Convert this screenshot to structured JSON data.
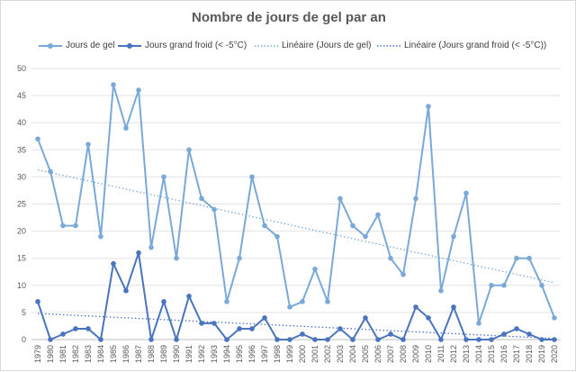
{
  "chart_data": {
    "type": "line",
    "title": "Nombre de jours de gel par an",
    "x": [
      "1979",
      "1980",
      "1981",
      "1982",
      "1983",
      "1984",
      "1985",
      "1986",
      "1987",
      "1988",
      "1989",
      "1990",
      "1991",
      "1992",
      "1993",
      "1994",
      "1995",
      "1996",
      "1997",
      "1998",
      "1999",
      "2000",
      "2001",
      "2002",
      "2003",
      "2004",
      "2005",
      "2006",
      "2007",
      "2008",
      "2009",
      "2010",
      "2011",
      "2012",
      "2013",
      "2014",
      "2015",
      "2016",
      "2017",
      "2018",
      "2019",
      "2020"
    ],
    "ylim": [
      0,
      50
    ],
    "yticks": [
      0,
      5,
      10,
      15,
      20,
      25,
      30,
      35,
      40,
      45,
      50
    ],
    "grid": true,
    "legend_position": "top",
    "series": [
      {
        "name": "Jours de gel",
        "color": "#7aa9d8",
        "marker": "circle",
        "values": [
          37,
          31,
          21,
          21,
          36,
          19,
          47,
          39,
          46,
          17,
          30,
          15,
          35,
          26,
          24,
          7,
          15,
          30,
          21,
          19,
          6,
          7,
          13,
          7,
          26,
          21,
          19,
          23,
          15,
          12,
          26,
          43,
          9,
          19,
          27,
          3,
          10,
          10,
          15,
          15,
          10,
          4
        ]
      },
      {
        "name": "Jours grand froid (< -5°C)",
        "color": "#4a74be",
        "marker": "circle",
        "values": [
          7,
          0,
          1,
          2,
          2,
          0,
          14,
          9,
          16,
          0,
          7,
          0,
          8,
          3,
          3,
          0,
          2,
          2,
          4,
          0,
          0,
          1,
          0,
          0,
          2,
          0,
          4,
          0,
          1,
          0,
          6,
          4,
          0,
          6,
          0,
          0,
          0,
          1,
          2,
          1,
          0,
          0
        ]
      }
    ],
    "trendlines": [
      {
        "name": "Linéaire (Jours de gel)",
        "color": "#7aa9d8",
        "start": 31.3,
        "end": 10.5
      },
      {
        "name": "Linéaire (Jours grand froid (< -5°C))",
        "color": "#4a74be",
        "start": 4.8,
        "end": 0.2
      }
    ]
  }
}
